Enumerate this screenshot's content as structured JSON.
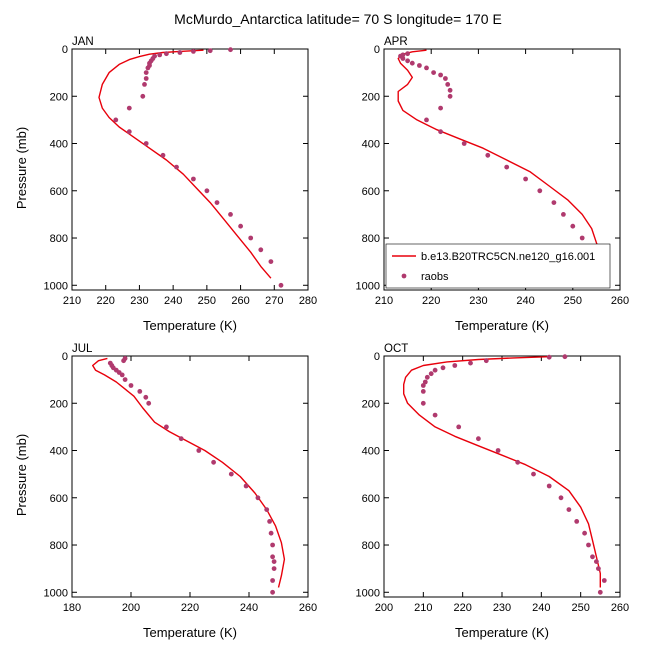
{
  "chart_data": {
    "title": "McMurdo_Antarctica  latitude= 70 S longitude= 170 E",
    "colors": {
      "model": "#e8000b",
      "raobs": "#b03a6e",
      "axis": "#000000"
    },
    "legend": {
      "panel": "APR",
      "placement": "lower-right",
      "model_label": "b.e13.B20TRC5CN.ne120_g16.001",
      "raobs_label": "raobs"
    },
    "panels": [
      {
        "type": "line+scatter",
        "title": "JAN",
        "xlabel": "Temperature (K)",
        "ylabel": "Pressure (mb)",
        "xlim": [
          210,
          280
        ],
        "ylim": [
          1020,
          0
        ],
        "xticks": [
          "210",
          "220",
          "230",
          "240",
          "250",
          "260",
          "270",
          "280"
        ],
        "yticks": [
          "0",
          "200",
          "400",
          "600",
          "800",
          "1000"
        ],
        "model": {
          "name": "b.e13.B20TRC5CN.ne120_g16.001",
          "x": [
            249,
            242,
            237,
            233,
            230,
            227,
            224,
            221,
            219,
            218,
            219,
            221,
            224,
            228,
            233,
            238,
            243,
            247,
            251,
            255,
            259,
            263,
            266,
            269
          ],
          "y": [
            5,
            10,
            15,
            22,
            32,
            45,
            65,
            100,
            150,
            205,
            250,
            290,
            330,
            370,
            420,
            470,
            530,
            590,
            650,
            720,
            790,
            860,
            920,
            970
          ]
        },
        "raobs": {
          "name": "raobs",
          "x": [
            257,
            251,
            246,
            242,
            238,
            236,
            234.5,
            234,
            233.5,
            233,
            233,
            232.5,
            232,
            232,
            231.5,
            231,
            227,
            223,
            227,
            232,
            237,
            241,
            246,
            250,
            253,
            257,
            260,
            263,
            266,
            269,
            272
          ],
          "y": [
            3,
            7,
            10,
            15,
            20,
            25,
            30,
            40,
            50,
            60,
            70,
            80,
            100,
            125,
            150,
            200,
            250,
            300,
            350,
            400,
            450,
            500,
            550,
            600,
            650,
            700,
            750,
            800,
            850,
            900,
            1000
          ]
        }
      },
      {
        "type": "line+scatter",
        "title": "APR",
        "xlabel": "Temperature (K)",
        "ylabel": "",
        "xlim": [
          210,
          260
        ],
        "ylim": [
          1020,
          0
        ],
        "xticks": [
          "210",
          "220",
          "230",
          "240",
          "250",
          "260"
        ],
        "yticks": [
          "0",
          "200",
          "400",
          "600",
          "800",
          "1000"
        ],
        "model": {
          "name": "b.e13.B20TRC5CN.ne120_g16.001",
          "x": [
            219,
            216,
            214,
            213,
            213.5,
            215,
            216,
            215,
            213,
            213,
            214,
            217,
            221,
            226,
            231,
            236,
            241,
            245,
            249,
            252,
            254,
            255,
            256,
            256,
            255,
            254
          ],
          "y": [
            5,
            12,
            22,
            40,
            60,
            90,
            120,
            150,
            180,
            220,
            260,
            300,
            340,
            380,
            420,
            470,
            520,
            580,
            640,
            700,
            760,
            820,
            870,
            920,
            950,
            980
          ]
        },
        "raobs": {
          "name": "raobs",
          "x": [
            215,
            214,
            213.5,
            214,
            215,
            216,
            217.5,
            219,
            220.5,
            222,
            223,
            223.5,
            224,
            224,
            222,
            219,
            222,
            227,
            232,
            236,
            240,
            243,
            246,
            248,
            250,
            252,
            253,
            254,
            255,
            255.5,
            256,
            256
          ],
          "y": [
            20,
            25,
            30,
            40,
            50,
            60,
            70,
            80,
            100,
            110,
            125,
            150,
            175,
            200,
            250,
            300,
            350,
            400,
            450,
            500,
            550,
            600,
            650,
            700,
            750,
            800,
            850,
            870,
            900,
            925,
            950,
            1000
          ]
        }
      },
      {
        "type": "line+scatter",
        "title": "JUL",
        "xlabel": "Temperature (K)",
        "ylabel": "Pressure (mb)",
        "xlim": [
          180,
          260
        ],
        "ylim": [
          1020,
          0
        ],
        "xticks": [
          "180",
          "200",
          "220",
          "240",
          "260"
        ],
        "yticks": [
          "0",
          "200",
          "400",
          "600",
          "800",
          "1000"
        ],
        "model": {
          "name": "b.e13.B20TRC5CN.ne120_g16.001",
          "x": [
            192,
            189,
            187,
            188,
            191,
            195,
            198,
            201,
            204,
            208,
            213,
            219,
            225,
            231,
            237,
            242,
            246,
            249,
            251,
            252,
            251,
            250
          ],
          "y": [
            10,
            20,
            40,
            60,
            80,
            110,
            140,
            170,
            220,
            280,
            320,
            360,
            400,
            450,
            510,
            580,
            650,
            720,
            790,
            860,
            930,
            980
          ]
        },
        "raobs": {
          "name": "raobs",
          "x": [
            198,
            197.5,
            193,
            193.5,
            194,
            195,
            196,
            197,
            198,
            200,
            203,
            205,
            206,
            212,
            217,
            223,
            228,
            234,
            239,
            243,
            246,
            247,
            247.5,
            248,
            248,
            248.5,
            248.5,
            248,
            248
          ],
          "y": [
            10,
            20,
            30,
            40,
            50,
            60,
            70,
            80,
            100,
            125,
            150,
            175,
            200,
            300,
            350,
            400,
            450,
            500,
            550,
            600,
            650,
            700,
            750,
            800,
            850,
            870,
            900,
            950,
            1000
          ]
        }
      },
      {
        "type": "line+scatter",
        "title": "OCT",
        "xlabel": "Temperature (K)",
        "ylabel": "",
        "xlim": [
          200,
          260
        ],
        "ylim": [
          1020,
          0
        ],
        "xticks": [
          "200",
          "210",
          "220",
          "230",
          "240",
          "250",
          "260"
        ],
        "yticks": [
          "0",
          "200",
          "400",
          "600",
          "800",
          "1000"
        ],
        "model": {
          "name": "b.e13.B20TRC5CN.ne120_g16.001",
          "x": [
            242,
            233,
            224,
            216,
            210,
            207,
            205.5,
            205,
            205,
            206,
            209,
            213,
            218,
            224,
            230,
            236,
            242,
            247,
            250,
            252,
            253,
            254,
            255,
            255
          ],
          "y": [
            3,
            8,
            15,
            25,
            40,
            60,
            90,
            120,
            160,
            200,
            250,
            300,
            340,
            380,
            420,
            460,
            510,
            570,
            640,
            710,
            780,
            850,
            920,
            980
          ]
        },
        "raobs": {
          "name": "raobs",
          "x": [
            246,
            242,
            226,
            222,
            218,
            215,
            213,
            212,
            211,
            210.5,
            210,
            210,
            210,
            213,
            219,
            224,
            229,
            234,
            238,
            242,
            245,
            247,
            249,
            251,
            252,
            253,
            254,
            254.5,
            256,
            255
          ],
          "y": [
            3,
            5,
            20,
            30,
            40,
            50,
            60,
            75,
            90,
            110,
            125,
            150,
            200,
            250,
            300,
            350,
            400,
            450,
            500,
            550,
            600,
            650,
            700,
            750,
            800,
            850,
            870,
            900,
            950,
            1000
          ]
        }
      }
    ]
  }
}
